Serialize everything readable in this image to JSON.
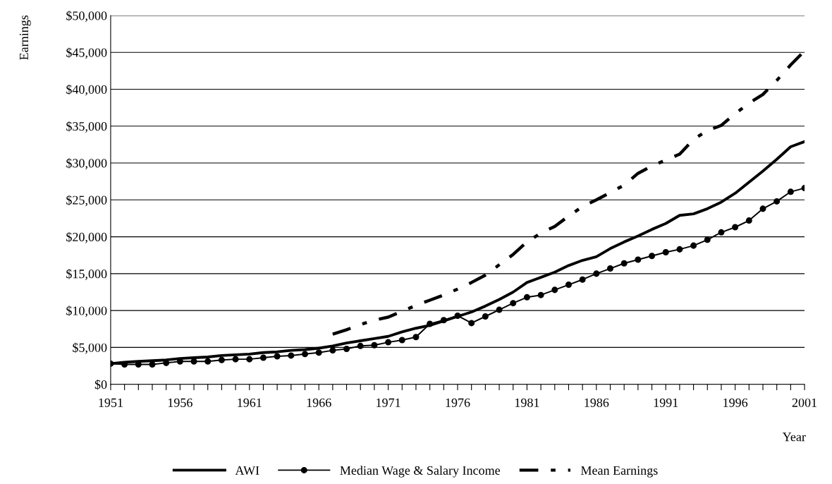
{
  "chart_data": {
    "type": "line",
    "xlabel": "Year",
    "ylabel": "Earnings",
    "x": [
      1951,
      1952,
      1953,
      1954,
      1955,
      1956,
      1957,
      1958,
      1959,
      1960,
      1961,
      1962,
      1963,
      1964,
      1965,
      1966,
      1967,
      1968,
      1969,
      1970,
      1971,
      1972,
      1973,
      1974,
      1975,
      1976,
      1977,
      1978,
      1979,
      1980,
      1981,
      1982,
      1983,
      1984,
      1985,
      1986,
      1987,
      1988,
      1989,
      1990,
      1991,
      1992,
      1993,
      1994,
      1995,
      1996,
      1997,
      1998,
      1999,
      2000,
      2001
    ],
    "series": [
      {
        "name": "AWI",
        "color": "#000000",
        "marker": "none",
        "line_style": "solid",
        "values": [
          2800,
          3000,
          3100,
          3200,
          3300,
          3500,
          3600,
          3700,
          3900,
          4000,
          4100,
          4300,
          4400,
          4600,
          4700,
          4900,
          5200,
          5600,
          5900,
          6200,
          6500,
          7100,
          7600,
          8000,
          8600,
          9200,
          9800,
          10600,
          11500,
          12500,
          13800,
          14500,
          15200,
          16100,
          16800,
          17300,
          18400,
          19300,
          20100,
          21000,
          21800,
          22900,
          23100,
          23800,
          24700,
          25900,
          27400,
          28900,
          30500,
          32200,
          32900
        ]
      },
      {
        "name": "Median Wage & Salary Income",
        "color": "#000000",
        "marker": "circle",
        "line_style": "solid",
        "values": [
          2800,
          2700,
          2700,
          2700,
          2900,
          3100,
          3100,
          3100,
          3300,
          3400,
          3400,
          3600,
          3800,
          3900,
          4100,
          4300,
          4600,
          4800,
          5200,
          5300,
          5700,
          6000,
          6400,
          8200,
          8700,
          9300,
          8300,
          9200,
          10100,
          11000,
          11800,
          12100,
          12800,
          13500,
          14200,
          15000,
          15700,
          16400,
          16900,
          17400,
          17900,
          18300,
          18800,
          19600,
          20600,
          21300,
          22200,
          23800,
          24800,
          26100,
          26600
        ]
      },
      {
        "name": "Mean Earnings",
        "color": "#000000",
        "marker": "none",
        "line_style": "dashed",
        "values": [
          null,
          null,
          null,
          null,
          null,
          null,
          null,
          null,
          null,
          null,
          null,
          null,
          null,
          null,
          null,
          null,
          6800,
          7400,
          8100,
          8700,
          9100,
          9900,
          10700,
          11400,
          12100,
          12900,
          13800,
          14800,
          16200,
          17600,
          19300,
          20500,
          21400,
          22800,
          24100,
          25000,
          26000,
          27000,
          28600,
          29600,
          30400,
          31200,
          33200,
          34400,
          35100,
          36700,
          38100,
          39300,
          41200,
          43300,
          45200
        ]
      }
    ],
    "xlim": [
      1951,
      2001
    ],
    "xticks": [
      1951,
      {
        "value": 1952,
        "label": null
      },
      {
        "value": 1953,
        "label": null
      },
      {
        "value": 1954,
        "label": null
      },
      {
        "value": 1955,
        "label": null
      },
      1956,
      {
        "value": 1957,
        "label": null
      },
      {
        "value": 1958,
        "label": null
      },
      {
        "value": 1959,
        "label": null
      },
      {
        "value": 1960,
        "label": null
      },
      1961,
      {
        "value": 1962,
        "label": null
      },
      {
        "value": 1963,
        "label": null
      },
      {
        "value": 1964,
        "label": null
      },
      {
        "value": 1965,
        "label": null
      },
      1966,
      {
        "value": 1967,
        "label": null
      },
      {
        "value": 1968,
        "label": null
      },
      {
        "value": 1969,
        "label": null
      },
      {
        "value": 1970,
        "label": null
      },
      1971,
      {
        "value": 1972,
        "label": null
      },
      {
        "value": 1973,
        "label": null
      },
      {
        "value": 1974,
        "label": null
      },
      {
        "value": 1975,
        "label": null
      },
      1976,
      {
        "value": 1977,
        "label": null
      },
      {
        "value": 1978,
        "label": null
      },
      {
        "value": 1979,
        "label": null
      },
      {
        "value": 1980,
        "label": null
      },
      1981,
      {
        "value": 1982,
        "label": null
      },
      {
        "value": 1983,
        "label": null
      },
      {
        "value": 1984,
        "label": null
      },
      {
        "value": 1985,
        "label": null
      },
      1986,
      {
        "value": 1987,
        "label": null
      },
      {
        "value": 1988,
        "label": null
      },
      {
        "value": 1989,
        "label": null
      },
      {
        "value": 1990,
        "label": null
      },
      1991,
      {
        "value": 1992,
        "label": null
      },
      {
        "value": 1993,
        "label": null
      },
      {
        "value": 1994,
        "label": null
      },
      {
        "value": 1995,
        "label": null
      },
      1996,
      {
        "value": 1997,
        "label": null
      },
      {
        "value": 1998,
        "label": null
      },
      {
        "value": 1999,
        "label": null
      },
      {
        "value": 2000,
        "label": null
      },
      2001
    ],
    "ylim": [
      0,
      50000
    ],
    "yticks": [
      {
        "value": 0,
        "label": "$0"
      },
      {
        "value": 5000,
        "label": "$5,000"
      },
      {
        "value": 10000,
        "label": "$10,000"
      },
      {
        "value": 15000,
        "label": "$15,000"
      },
      {
        "value": 20000,
        "label": "$20,000"
      },
      {
        "value": 25000,
        "label": "$25,000"
      },
      {
        "value": 30000,
        "label": "$30,000"
      },
      {
        "value": 35000,
        "label": "$35,000"
      },
      {
        "value": 40000,
        "label": "$40,000"
      },
      {
        "value": 45000,
        "label": "$45,000"
      },
      {
        "value": 50000,
        "label": "$50,000"
      }
    ],
    "grid": "y",
    "legend": "bottom"
  }
}
